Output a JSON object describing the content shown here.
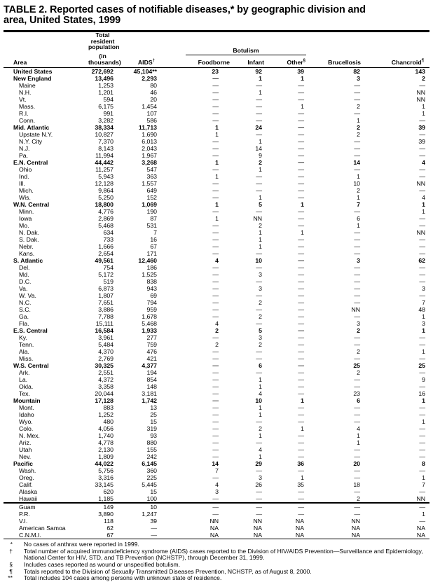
{
  "title_lines": [
    "TABLE 2. Reported cases of notifiable diseases,* by geographic division and",
    "area, United States, 1999"
  ],
  "table": {
    "headers": {
      "area": "Area",
      "population_lines": [
        "Total resident",
        "population",
        "(in thousands)"
      ],
      "aids": "AIDS",
      "aids_sup": "†",
      "botulism_group": "Botulism",
      "foodborne": "Foodborne",
      "infant": "Infant",
      "other": "Other",
      "other_sup": "§",
      "brucellosis": "Brucellosis",
      "chancroid": "Chancroid",
      "chancroid_sup": "¶"
    },
    "rows": [
      {
        "area": "United States",
        "bold": true,
        "values": [
          "272,692",
          "45,104**",
          "23",
          "92",
          "39",
          "82",
          "143"
        ]
      },
      {
        "area": "New England",
        "bold": true,
        "values": [
          "13,496",
          "2,293",
          "—",
          "1",
          "1",
          "3",
          "2"
        ]
      },
      {
        "area": "Maine",
        "indent": true,
        "values": [
          "1,253",
          "80",
          "—",
          "—",
          "—",
          "—",
          "—"
        ]
      },
      {
        "area": "N.H.",
        "indent": true,
        "values": [
          "1,201",
          "46",
          "—",
          "1",
          "—",
          "—",
          "NN"
        ]
      },
      {
        "area": "Vt.",
        "indent": true,
        "values": [
          "594",
          "20",
          "—",
          "—",
          "—",
          "—",
          "NN"
        ]
      },
      {
        "area": "Mass.",
        "indent": true,
        "values": [
          "6,175",
          "1,454",
          "—",
          "—",
          "1",
          "2",
          "1"
        ]
      },
      {
        "area": "R.I.",
        "indent": true,
        "values": [
          "991",
          "107",
          "—",
          "—",
          "—",
          "—",
          "1"
        ]
      },
      {
        "area": "Conn.",
        "indent": true,
        "values": [
          "3,282",
          "586",
          "—",
          "—",
          "—",
          "1",
          "—"
        ]
      },
      {
        "area": "Mid. Atlantic",
        "bold": true,
        "values": [
          "38,334",
          "11,713",
          "1",
          "24",
          "—",
          "2",
          "39"
        ]
      },
      {
        "area": "Upstate N.Y.",
        "indent": true,
        "values": [
          "10,827",
          "1,690",
          "1",
          "—",
          "—",
          "2",
          "—"
        ]
      },
      {
        "area": "N.Y. City",
        "indent": true,
        "values": [
          "7,370",
          "6,013",
          "—",
          "1",
          "—",
          "—",
          "39"
        ]
      },
      {
        "area": "N.J.",
        "indent": true,
        "values": [
          "8,143",
          "2,043",
          "—",
          "14",
          "—",
          "—",
          "—"
        ]
      },
      {
        "area": "Pa.",
        "indent": true,
        "values": [
          "11,994",
          "1,967",
          "—",
          "9",
          "—",
          "—",
          "—"
        ]
      },
      {
        "area": "E.N. Central",
        "bold": true,
        "values": [
          "44,442",
          "3,268",
          "1",
          "2",
          "—",
          "14",
          "4"
        ]
      },
      {
        "area": "Ohio",
        "indent": true,
        "values": [
          "11,257",
          "547",
          "—",
          "1",
          "—",
          "—",
          "—"
        ]
      },
      {
        "area": "Ind.",
        "indent": true,
        "values": [
          "5,943",
          "363",
          "1",
          "—",
          "—",
          "1",
          "—"
        ]
      },
      {
        "area": "Ill.",
        "indent": true,
        "values": [
          "12,128",
          "1,557",
          "—",
          "—",
          "—",
          "10",
          "NN"
        ]
      },
      {
        "area": "Mich.",
        "indent": true,
        "values": [
          "9,864",
          "649",
          "—",
          "—",
          "—",
          "2",
          "—"
        ]
      },
      {
        "area": "Wis.",
        "indent": true,
        "values": [
          "5,250",
          "152",
          "—",
          "1",
          "—",
          "1",
          "4"
        ]
      },
      {
        "area": "W.N. Central",
        "bold": true,
        "values": [
          "18,800",
          "1,069",
          "1",
          "5",
          "1",
          "7",
          "1"
        ]
      },
      {
        "area": "Minn.",
        "indent": true,
        "values": [
          "4,776",
          "190",
          "—",
          "—",
          "—",
          "—",
          "1"
        ]
      },
      {
        "area": "Iowa",
        "indent": true,
        "values": [
          "2,869",
          "87",
          "1",
          "NN",
          "—",
          "6",
          "—"
        ]
      },
      {
        "area": "Mo.",
        "indent": true,
        "values": [
          "5,468",
          "531",
          "—",
          "2",
          "—",
          "1",
          "—"
        ]
      },
      {
        "area": "N. Dak.",
        "indent": true,
        "values": [
          "634",
          "7",
          "—",
          "1",
          "1",
          "—",
          "NN"
        ]
      },
      {
        "area": "S. Dak.",
        "indent": true,
        "values": [
          "733",
          "16",
          "—",
          "1",
          "—",
          "—",
          "—"
        ]
      },
      {
        "area": "Nebr.",
        "indent": true,
        "values": [
          "1,666",
          "67",
          "—",
          "1",
          "—",
          "—",
          "—"
        ]
      },
      {
        "area": "Kans.",
        "indent": true,
        "values": [
          "2,654",
          "171",
          "—",
          "—",
          "—",
          "—",
          "—"
        ]
      },
      {
        "area": "S. Atlantic",
        "bold": true,
        "values": [
          "49,561",
          "12,460",
          "4",
          "10",
          "—",
          "3",
          "62"
        ]
      },
      {
        "area": "Del.",
        "indent": true,
        "values": [
          "754",
          "186",
          "—",
          "—",
          "—",
          "—",
          "—"
        ]
      },
      {
        "area": "Md.",
        "indent": true,
        "values": [
          "5,172",
          "1,525",
          "—",
          "3",
          "—",
          "—",
          "—"
        ]
      },
      {
        "area": "D.C.",
        "indent": true,
        "values": [
          "519",
          "838",
          "—",
          "—",
          "—",
          "—",
          "—"
        ]
      },
      {
        "area": "Va.",
        "indent": true,
        "values": [
          "6,873",
          "943",
          "—",
          "3",
          "—",
          "—",
          "3"
        ]
      },
      {
        "area": "W. Va.",
        "indent": true,
        "values": [
          "1,807",
          "69",
          "—",
          "—",
          "—",
          "—",
          "—"
        ]
      },
      {
        "area": "N.C.",
        "indent": true,
        "values": [
          "7,651",
          "794",
          "—",
          "2",
          "—",
          "—",
          "7"
        ]
      },
      {
        "area": "S.C.",
        "indent": true,
        "values": [
          "3,886",
          "959",
          "—",
          "—",
          "—",
          "NN",
          "48"
        ]
      },
      {
        "area": "Ga.",
        "indent": true,
        "values": [
          "7,788",
          "1,678",
          "—",
          "2",
          "—",
          "—",
          "1"
        ]
      },
      {
        "area": "Fla.",
        "indent": true,
        "values": [
          "15,111",
          "5,468",
          "4",
          "—",
          "—",
          "3",
          "3"
        ]
      },
      {
        "area": "E.S. Central",
        "bold": true,
        "values": [
          "16,584",
          "1,933",
          "2",
          "5",
          "—",
          "2",
          "1"
        ]
      },
      {
        "area": "Ky.",
        "indent": true,
        "values": [
          "3,961",
          "277",
          "—",
          "3",
          "—",
          "—",
          "—"
        ]
      },
      {
        "area": "Tenn.",
        "indent": true,
        "values": [
          "5,484",
          "759",
          "2",
          "2",
          "—",
          "—",
          "—"
        ]
      },
      {
        "area": "Ala.",
        "indent": true,
        "values": [
          "4,370",
          "476",
          "—",
          "—",
          "—",
          "2",
          "1"
        ]
      },
      {
        "area": "Miss.",
        "indent": true,
        "values": [
          "2,769",
          "421",
          "—",
          "—",
          "—",
          "—",
          "—"
        ]
      },
      {
        "area": "W.S. Central",
        "bold": true,
        "values": [
          "30,325",
          "4,377",
          "—",
          "6",
          "—",
          "25",
          "25"
        ]
      },
      {
        "area": "Ark.",
        "indent": true,
        "values": [
          "2,551",
          "194",
          "—",
          "—",
          "—",
          "2",
          "—"
        ]
      },
      {
        "area": "La.",
        "indent": true,
        "values": [
          "4,372",
          "854",
          "—",
          "1",
          "—",
          "—",
          "9"
        ]
      },
      {
        "area": "Okla.",
        "indent": true,
        "values": [
          "3,358",
          "148",
          "—",
          "1",
          "—",
          "—",
          "—"
        ]
      },
      {
        "area": "Tex.",
        "indent": true,
        "values": [
          "20,044",
          "3,181",
          "—",
          "4",
          "—",
          "23",
          "16"
        ]
      },
      {
        "area": "Mountain",
        "bold": true,
        "values": [
          "17,128",
          "1,742",
          "—",
          "10",
          "1",
          "6",
          "1"
        ]
      },
      {
        "area": "Mont.",
        "indent": true,
        "values": [
          "883",
          "13",
          "—",
          "1",
          "—",
          "—",
          "—"
        ]
      },
      {
        "area": "Idaho",
        "indent": true,
        "values": [
          "1,252",
          "25",
          "—",
          "1",
          "—",
          "—",
          "—"
        ]
      },
      {
        "area": "Wyo.",
        "indent": true,
        "values": [
          "480",
          "15",
          "—",
          "—",
          "—",
          "—",
          "1"
        ]
      },
      {
        "area": "Colo.",
        "indent": true,
        "values": [
          "4,056",
          "319",
          "—",
          "2",
          "1",
          "4",
          "—"
        ]
      },
      {
        "area": "N. Mex.",
        "indent": true,
        "values": [
          "1,740",
          "93",
          "—",
          "1",
          "—",
          "1",
          "—"
        ]
      },
      {
        "area": "Ariz.",
        "indent": true,
        "values": [
          "4,778",
          "880",
          "—",
          "—",
          "—",
          "1",
          "—"
        ]
      },
      {
        "area": "Utah",
        "indent": true,
        "values": [
          "2,130",
          "155",
          "—",
          "4",
          "—",
          "—",
          "—"
        ]
      },
      {
        "area": "Nev.",
        "indent": true,
        "values": [
          "1,809",
          "242",
          "—",
          "1",
          "—",
          "—",
          "—"
        ]
      },
      {
        "area": "Pacific",
        "bold": true,
        "values": [
          "44,022",
          "6,145",
          "14",
          "29",
          "36",
          "20",
          "8"
        ]
      },
      {
        "area": "Wash.",
        "indent": true,
        "values": [
          "5,756",
          "360",
          "7",
          "—",
          "—",
          "—",
          "—"
        ]
      },
      {
        "area": "Oreg.",
        "indent": true,
        "values": [
          "3,316",
          "225",
          "—",
          "3",
          "1",
          "—",
          "1"
        ]
      },
      {
        "area": "Calif.",
        "indent": true,
        "values": [
          "33,145",
          "5,445",
          "4",
          "26",
          "35",
          "18",
          "7"
        ]
      },
      {
        "area": "Alaska",
        "indent": true,
        "values": [
          "620",
          "15",
          "3",
          "—",
          "—",
          "—",
          "—"
        ]
      },
      {
        "area": "Hawaii",
        "indent": true,
        "values": [
          "1,185",
          "100",
          "—",
          "—",
          "—",
          "2",
          "NN"
        ]
      },
      {
        "area": "Guam",
        "indent": true,
        "territory_start": true,
        "values": [
          "149",
          "10",
          "—",
          "—",
          "—",
          "—",
          "—"
        ]
      },
      {
        "area": "P.R.",
        "indent": true,
        "values": [
          "3,890",
          "1,247",
          "—",
          "—",
          "—",
          "—",
          "1"
        ]
      },
      {
        "area": "V.I.",
        "indent": true,
        "values": [
          "118",
          "39",
          "NN",
          "NN",
          "NA",
          "NN",
          "—"
        ]
      },
      {
        "area": "American Samoa",
        "indent": true,
        "values": [
          "62",
          "—",
          "NA",
          "NA",
          "NA",
          "NA",
          "NA"
        ]
      },
      {
        "area": "C.N.M.I.",
        "indent": true,
        "values": [
          "67",
          "—",
          "NA",
          "NA",
          "NA",
          "NA",
          "NA"
        ]
      }
    ]
  },
  "footnotes": [
    {
      "symbol": "*",
      "text": "No cases of anthrax were reported in 1999."
    },
    {
      "symbol": "†",
      "text": "Total number of acquired immunodeficiency syndrome (AIDS) cases reported to the Division of HIV/AIDS Prevention—Surveillance and Epidemiology, National Center for HIV, STD, and TB Prevention (NCHSTP), through December 31, 1999."
    },
    {
      "symbol": "§",
      "text": "Includes cases reported as wound or unspecified botulism."
    },
    {
      "symbol": "¶",
      "text": "Totals reported to the Division of Sexually Transmitted Diseases Prevention, NCHSTP, as of August 8, 2000."
    },
    {
      "symbol": "**",
      "text": "Total includes 104 cases among persons with unknown state of residence."
    }
  ]
}
